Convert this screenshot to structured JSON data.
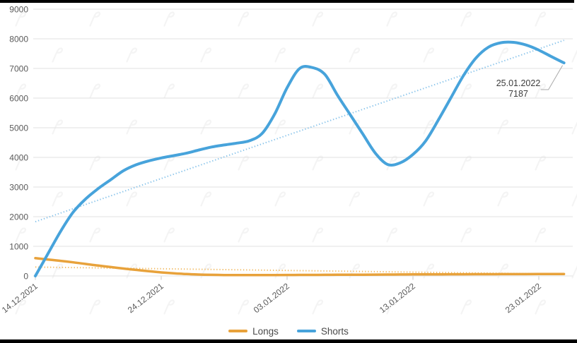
{
  "frame": {
    "background": "#FFFFFF",
    "border_color": "#000000"
  },
  "watermark": {
    "icon": "forklog-logo-icon",
    "color": "#ECECEC"
  },
  "chart_data": {
    "type": "line",
    "title": "",
    "grid": true,
    "legend_position": "bottom-center",
    "x_axis": {
      "start_date": "14.12.2021",
      "end_date": "25.01.2022",
      "days_total": 42,
      "tick_labels": [
        "14.12.2021",
        "24.12.2021",
        "03.01.2022",
        "13.01.2022",
        "23.01.2022"
      ],
      "tick_day_offsets": [
        0,
        10,
        20,
        30,
        40
      ]
    },
    "y_axis": {
      "min": 0,
      "max": 9000,
      "tick_step": 1000,
      "tick_labels": [
        "0",
        "1000",
        "2000",
        "3000",
        "4000",
        "5000",
        "6000",
        "7000",
        "8000",
        "9000"
      ]
    },
    "series": [
      {
        "name": "Longs",
        "color": "#E8A23B",
        "stroke_width": 3.5,
        "values": [
          600,
          555,
          510,
          460,
          405,
          350,
          300,
          250,
          205,
          160,
          120,
          90,
          65,
          48,
          38,
          32,
          30,
          30,
          30,
          32,
          33,
          35,
          36,
          38,
          40,
          42,
          44,
          46,
          48,
          50,
          52,
          54,
          55,
          56,
          58,
          59,
          60,
          61,
          62,
          63,
          64,
          65,
          65
        ]
      },
      {
        "name": "Shorts",
        "color": "#47A3DB",
        "stroke_width": 4,
        "values": [
          0,
          750,
          1500,
          2150,
          2600,
          2950,
          3250,
          3550,
          3750,
          3880,
          3980,
          4060,
          4140,
          4250,
          4350,
          4420,
          4480,
          4560,
          4800,
          5450,
          6350,
          7000,
          7030,
          6800,
          6100,
          5450,
          4800,
          4150,
          3760,
          3820,
          4100,
          4550,
          5250,
          6000,
          6750,
          7350,
          7720,
          7870,
          7880,
          7790,
          7620,
          7400,
          7187
        ]
      }
    ],
    "trendlines": [
      {
        "series": "Longs",
        "style": "dotted",
        "color": "#F2BC66",
        "start_value": 300,
        "end_value": 60
      },
      {
        "series": "Shorts",
        "style": "dotted",
        "color": "#85C2EA",
        "start_value": 1830,
        "end_value": 7950
      }
    ],
    "annotation": {
      "date": "25.01.2022",
      "value": "7187",
      "attached_to": "Shorts"
    },
    "legend": [
      {
        "label": "Longs",
        "color": "#E8A23B"
      },
      {
        "label": "Shorts",
        "color": "#47A3DB"
      }
    ]
  }
}
